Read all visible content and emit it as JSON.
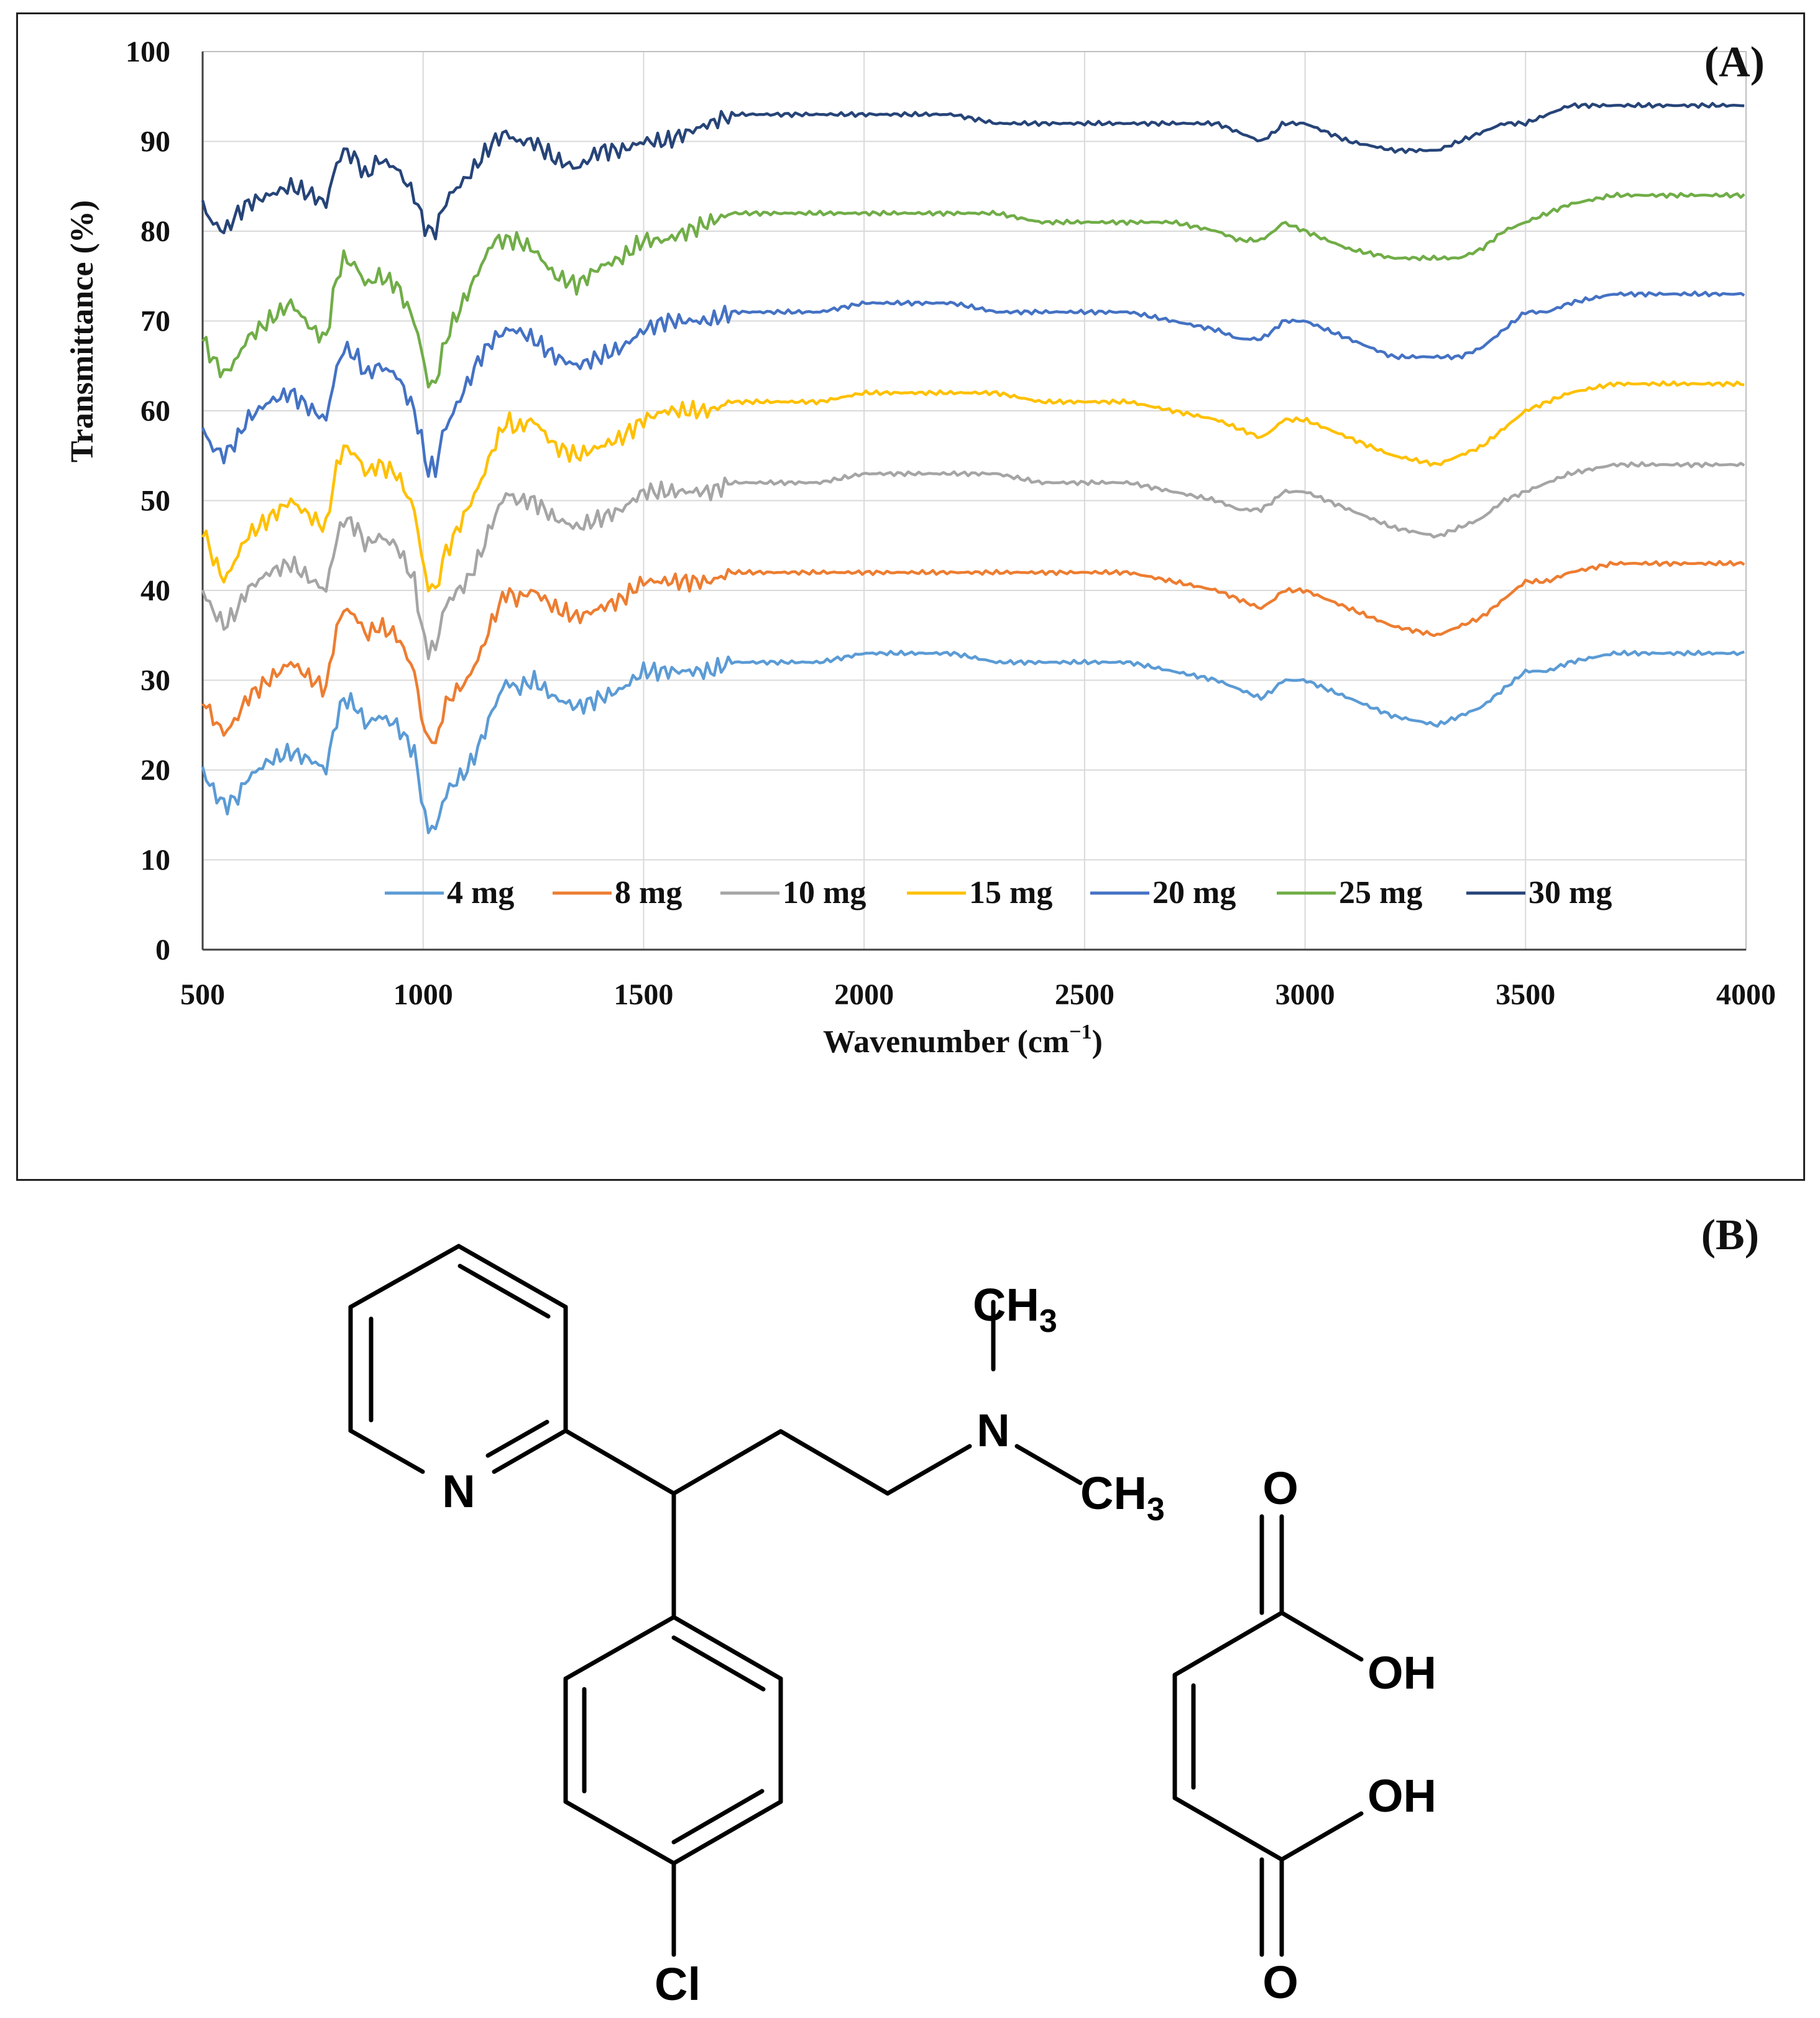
{
  "chart_data": {
    "type": "line",
    "panel_label": "(A)",
    "xlabel": "Wavenumber (cm⁻¹)",
    "xlabel_main": "Wavenumber (cm",
    "xlabel_sup": "−1",
    "xlabel_end": ")",
    "ylabel": "Transmittance (%)",
    "xlim": [
      500,
      4000
    ],
    "ylim": [
      0,
      100
    ],
    "x_ticks": [
      500,
      1000,
      1500,
      2000,
      2500,
      3000,
      3500,
      4000
    ],
    "y_ticks": [
      0,
      10,
      20,
      30,
      40,
      50,
      60,
      70,
      80,
      90,
      100
    ],
    "grid": true,
    "legend_position": "bottom-inside",
    "series": [
      {
        "name": "4 mg",
        "color": "#5B9BD5",
        "x": [
          500,
          520,
          550,
          580,
          600,
          650,
          700,
          750,
          780,
          800,
          820,
          850,
          870,
          900,
          940,
          980,
          1000,
          1010,
          1020,
          1030,
          1040,
          1060,
          1080,
          1100,
          1130,
          1160,
          1190,
          1210,
          1250,
          1300,
          1350,
          1400,
          1450,
          1500,
          1550,
          1600,
          1650,
          1700,
          1800,
          1900,
          2000,
          2100,
          2200,
          2300,
          2400,
          2500,
          2600,
          2700,
          2800,
          2850,
          2900,
          2930,
          2950,
          3000,
          3100,
          3200,
          3300,
          3350,
          3400,
          3450,
          3500,
          3550,
          3600,
          3700,
          3800,
          3900,
          4000
        ],
        "y": [
          20,
          18,
          16,
          17,
          19,
          21,
          22,
          21,
          20,
          25,
          28,
          27,
          25,
          26,
          25,
          22,
          16,
          13,
          14,
          13,
          16,
          18,
          19,
          20,
          23,
          27,
          30,
          29,
          30,
          28,
          27,
          28,
          29,
          31,
          31,
          31,
          31,
          32,
          32,
          32,
          33,
          33,
          33,
          32,
          32,
          32,
          32,
          31,
          30,
          29,
          28,
          29,
          30,
          30,
          28,
          26,
          25,
          26,
          27,
          29,
          31,
          31,
          32,
          33,
          33,
          33,
          33
        ]
      },
      {
        "name": "8 mg",
        "color": "#ED7D31",
        "x": [
          500,
          520,
          550,
          580,
          600,
          650,
          700,
          750,
          780,
          800,
          820,
          850,
          870,
          900,
          940,
          980,
          1000,
          1010,
          1020,
          1030,
          1040,
          1060,
          1080,
          1100,
          1130,
          1160,
          1190,
          1210,
          1250,
          1300,
          1350,
          1400,
          1450,
          1500,
          1550,
          1600,
          1650,
          1700,
          1800,
          1900,
          2000,
          2100,
          2200,
          2300,
          2400,
          2500,
          2600,
          2700,
          2800,
          2850,
          2900,
          2930,
          2950,
          3000,
          3100,
          3200,
          3300,
          3350,
          3400,
          3450,
          3500,
          3550,
          3600,
          3700,
          3800,
          3900,
          4000
        ],
        "y": [
          28,
          26,
          24,
          26,
          28,
          30,
          32,
          30,
          29,
          35,
          38,
          37,
          35,
          36,
          35,
          31,
          25,
          23,
          24,
          22,
          26,
          28,
          29,
          30,
          33,
          37,
          40,
          39,
          40,
          38,
          37,
          38,
          39,
          41,
          41,
          41,
          41,
          42,
          42,
          42,
          42,
          42,
          42,
          42,
          42,
          42,
          42,
          41,
          40,
          39,
          38,
          39,
          40,
          40,
          38,
          36,
          35,
          36,
          37,
          39,
          41,
          41,
          42,
          43,
          43,
          43,
          43
        ]
      },
      {
        "name": "10 mg",
        "color": "#A5A5A5",
        "x": [
          500,
          520,
          550,
          580,
          600,
          650,
          700,
          750,
          780,
          800,
          820,
          850,
          870,
          900,
          940,
          980,
          1000,
          1010,
          1020,
          1030,
          1040,
          1060,
          1080,
          1100,
          1130,
          1160,
          1190,
          1210,
          1250,
          1300,
          1350,
          1400,
          1450,
          1500,
          1550,
          1600,
          1650,
          1700,
          1800,
          1900,
          2000,
          2100,
          2200,
          2300,
          2400,
          2500,
          2600,
          2700,
          2800,
          2850,
          2900,
          2930,
          2950,
          3000,
          3100,
          3200,
          3300,
          3350,
          3400,
          3450,
          3500,
          3550,
          3600,
          3700,
          3800,
          3900,
          4000
        ],
        "y": [
          40,
          38,
          36,
          38,
          40,
          42,
          43,
          41,
          40,
          45,
          48,
          47,
          45,
          46,
          45,
          41,
          35,
          33,
          34,
          33,
          37,
          39,
          40,
          41,
          44,
          48,
          51,
          50,
          50,
          48,
          47,
          48,
          49,
          51,
          51,
          51,
          51,
          52,
          52,
          52,
          53,
          53,
          53,
          53,
          52,
          52,
          52,
          51,
          50,
          49,
          49,
          50,
          51,
          51,
          49,
          47,
          46,
          47,
          48,
          50,
          51,
          52,
          53,
          54,
          54,
          54,
          54
        ]
      },
      {
        "name": "15 mg",
        "color": "#FFC000",
        "x": [
          500,
          520,
          550,
          580,
          600,
          650,
          700,
          750,
          780,
          800,
          820,
          850,
          870,
          900,
          940,
          980,
          1000,
          1010,
          1020,
          1030,
          1040,
          1060,
          1080,
          1100,
          1130,
          1160,
          1190,
          1210,
          1250,
          1300,
          1350,
          1400,
          1450,
          1500,
          1550,
          1600,
          1650,
          1700,
          1800,
          1900,
          2000,
          2100,
          2200,
          2300,
          2400,
          2500,
          2600,
          2700,
          2800,
          2850,
          2900,
          2930,
          2950,
          3000,
          3100,
          3200,
          3300,
          3350,
          3400,
          3450,
          3500,
          3550,
          3600,
          3700,
          3800,
          3900,
          4000
        ],
        "y": [
          47,
          44,
          41,
          44,
          46,
          48,
          50,
          48,
          47,
          53,
          56,
          55,
          53,
          54,
          53,
          49,
          43,
          40,
          41,
          39,
          43,
          45,
          47,
          49,
          52,
          56,
          59,
          58,
          59,
          56,
          55,
          56,
          57,
          59,
          60,
          60,
          60,
          61,
          61,
          61,
          62,
          62,
          62,
          62,
          61,
          61,
          61,
          60,
          59,
          58,
          57,
          58,
          59,
          59,
          57,
          55,
          54,
          55,
          56,
          58,
          60,
          61,
          62,
          63,
          63,
          63,
          63
        ]
      },
      {
        "name": "20 mg",
        "color": "#4472C4",
        "x": [
          500,
          520,
          550,
          580,
          600,
          650,
          700,
          750,
          780,
          800,
          820,
          850,
          870,
          900,
          940,
          980,
          1000,
          1010,
          1020,
          1030,
          1040,
          1060,
          1080,
          1100,
          1130,
          1160,
          1190,
          1210,
          1250,
          1300,
          1350,
          1400,
          1450,
          1500,
          1550,
          1600,
          1650,
          1700,
          1800,
          1900,
          2000,
          2100,
          2200,
          2300,
          2400,
          2500,
          2600,
          2700,
          2800,
          2850,
          2900,
          2930,
          2950,
          3000,
          3100,
          3200,
          3300,
          3350,
          3400,
          3450,
          3500,
          3550,
          3600,
          3700,
          3800,
          3900,
          4000
        ],
        "y": [
          58,
          56,
          55,
          57,
          59,
          61,
          62,
          60,
          59,
          64,
          67,
          66,
          64,
          65,
          64,
          60,
          56,
          53,
          54,
          53,
          57,
          59,
          61,
          63,
          66,
          68,
          69,
          69,
          68,
          66,
          65,
          66,
          67,
          69,
          70,
          70,
          70,
          71,
          71,
          71,
          72,
          72,
          72,
          71,
          71,
          71,
          71,
          70,
          69,
          68,
          68,
          69,
          70,
          70,
          68,
          66,
          66,
          66,
          67,
          69,
          71,
          71,
          72,
          73,
          73,
          73,
          73
        ]
      },
      {
        "name": "25 mg",
        "color": "#70AD47",
        "x": [
          500,
          520,
          550,
          580,
          600,
          650,
          700,
          750,
          780,
          800,
          820,
          850,
          870,
          900,
          940,
          980,
          1000,
          1010,
          1020,
          1030,
          1040,
          1060,
          1080,
          1100,
          1130,
          1160,
          1190,
          1210,
          1250,
          1300,
          1350,
          1400,
          1450,
          1500,
          1550,
          1600,
          1650,
          1700,
          1800,
          1900,
          2000,
          2100,
          2200,
          2300,
          2400,
          2500,
          2600,
          2700,
          2800,
          2850,
          2900,
          2930,
          2950,
          3000,
          3100,
          3200,
          3300,
          3350,
          3400,
          3450,
          3500,
          3550,
          3600,
          3700,
          3800,
          3900,
          4000
        ],
        "y": [
          68,
          66,
          64,
          66,
          68,
          70,
          72,
          69,
          68,
          74,
          77,
          76,
          74,
          75,
          74,
          70,
          66,
          63,
          63,
          63,
          66,
          69,
          71,
          73,
          76,
          79,
          79,
          79,
          78,
          75,
          74,
          76,
          77,
          79,
          79,
          80,
          81,
          82,
          82,
          82,
          82,
          82,
          82,
          82,
          81,
          81,
          81,
          81,
          80,
          79,
          79,
          80,
          81,
          80,
          78,
          77,
          77,
          77,
          78,
          80,
          81,
          82,
          83,
          84,
          84,
          84,
          84
        ]
      },
      {
        "name": "30 mg",
        "color": "#264478",
        "x": [
          500,
          520,
          550,
          580,
          600,
          650,
          700,
          750,
          780,
          800,
          820,
          850,
          870,
          900,
          940,
          980,
          1000,
          1010,
          1020,
          1030,
          1040,
          1060,
          1080,
          1100,
          1130,
          1160,
          1190,
          1210,
          1250,
          1300,
          1350,
          1400,
          1450,
          1500,
          1550,
          1600,
          1650,
          1700,
          1800,
          1900,
          2000,
          2100,
          2200,
          2300,
          2400,
          2500,
          2600,
          2700,
          2800,
          2850,
          2900,
          2930,
          2950,
          3000,
          3100,
          3200,
          3300,
          3350,
          3400,
          3450,
          3500,
          3550,
          3600,
          3700,
          3800,
          3900,
          4000
        ],
        "y": [
          83,
          81,
          80,
          82,
          83,
          84,
          85,
          84,
          83,
          87,
          89,
          88,
          86,
          88,
          87,
          84,
          81,
          80,
          80,
          80,
          82,
          84,
          85,
          86,
          88,
          90,
          91,
          90,
          90,
          88,
          87,
          89,
          89,
          90,
          90,
          91,
          92,
          93,
          93,
          93,
          93,
          93,
          93,
          92,
          92,
          92,
          92,
          92,
          92,
          91,
          90,
          91,
          92,
          92,
          90,
          89,
          89,
          90,
          91,
          92,
          92,
          93,
          94,
          94,
          94,
          94,
          94
        ]
      }
    ]
  },
  "figure_b": {
    "panel_label": "(B)",
    "atoms": {
      "n_pyridine": "N",
      "ch3_label": "CH",
      "ch3_sub": "3",
      "n_amine": "N",
      "cl": "Cl",
      "o_top": "O",
      "oh_top": "OH",
      "oh_bottom": "OH",
      "o_bottom": "O"
    }
  }
}
